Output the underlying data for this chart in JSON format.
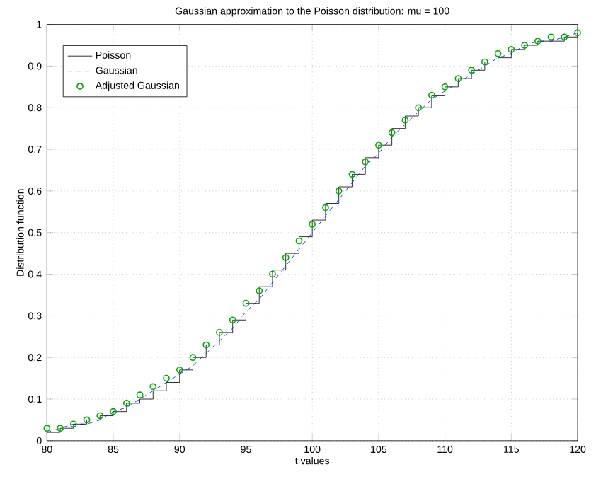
{
  "chart_data": {
    "type": "line",
    "title": "Gaussian approximation to the Poisson distribution: mu = 100",
    "xlabel": "t values",
    "ylabel": "Distribution function",
    "x": [
      80,
      81,
      82,
      83,
      84,
      85,
      86,
      87,
      88,
      89,
      90,
      91,
      92,
      93,
      94,
      95,
      96,
      97,
      98,
      99,
      100,
      101,
      102,
      103,
      104,
      105,
      106,
      107,
      108,
      109,
      110,
      111,
      112,
      113,
      114,
      115,
      116,
      117,
      118,
      119,
      120
    ],
    "series": [
      {
        "name": "Poisson",
        "type": "step",
        "color": "#000000",
        "line_style": "solid",
        "marker": "none",
        "values": [
          0.02,
          0.03,
          0.04,
          0.05,
          0.06,
          0.07,
          0.09,
          0.1,
          0.12,
          0.14,
          0.17,
          0.2,
          0.23,
          0.26,
          0.29,
          0.33,
          0.37,
          0.41,
          0.45,
          0.49,
          0.53,
          0.57,
          0.61,
          0.64,
          0.68,
          0.71,
          0.75,
          0.78,
          0.8,
          0.83,
          0.85,
          0.87,
          0.89,
          0.91,
          0.92,
          0.94,
          0.95,
          0.96,
          0.96,
          0.97,
          0.98
        ]
      },
      {
        "name": "Gaussian",
        "color": "#0000ff",
        "line_style": "dashed",
        "marker": "none",
        "values": [
          0.02,
          0.03,
          0.04,
          0.04,
          0.05,
          0.07,
          0.08,
          0.1,
          0.12,
          0.14,
          0.16,
          0.18,
          0.21,
          0.24,
          0.27,
          0.31,
          0.34,
          0.38,
          0.42,
          0.46,
          0.5,
          0.54,
          0.58,
          0.62,
          0.66,
          0.69,
          0.73,
          0.76,
          0.79,
          0.82,
          0.84,
          0.86,
          0.88,
          0.9,
          0.92,
          0.93,
          0.95,
          0.96,
          0.96,
          0.97,
          0.98
        ]
      },
      {
        "name": "Adjusted Gaussian",
        "type": "scatter",
        "color": "#00aa00",
        "marker": "circle",
        "values": [
          0.03,
          0.03,
          0.04,
          0.05,
          0.06,
          0.07,
          0.09,
          0.11,
          0.13,
          0.15,
          0.17,
          0.2,
          0.23,
          0.26,
          0.29,
          0.33,
          0.36,
          0.4,
          0.44,
          0.48,
          0.52,
          0.56,
          0.6,
          0.64,
          0.67,
          0.71,
          0.74,
          0.77,
          0.8,
          0.83,
          0.85,
          0.87,
          0.89,
          0.91,
          0.93,
          0.94,
          0.95,
          0.96,
          0.97,
          0.97,
          0.98
        ]
      }
    ],
    "xlim": [
      80,
      120
    ],
    "ylim": [
      0,
      1
    ],
    "xticks": [
      80,
      85,
      90,
      95,
      100,
      105,
      110,
      115,
      120
    ],
    "yticks": [
      0,
      0.1,
      0.2,
      0.3,
      0.4,
      0.5,
      0.6,
      0.7,
      0.8,
      0.9,
      1
    ],
    "grid": true,
    "legend": "top left"
  }
}
